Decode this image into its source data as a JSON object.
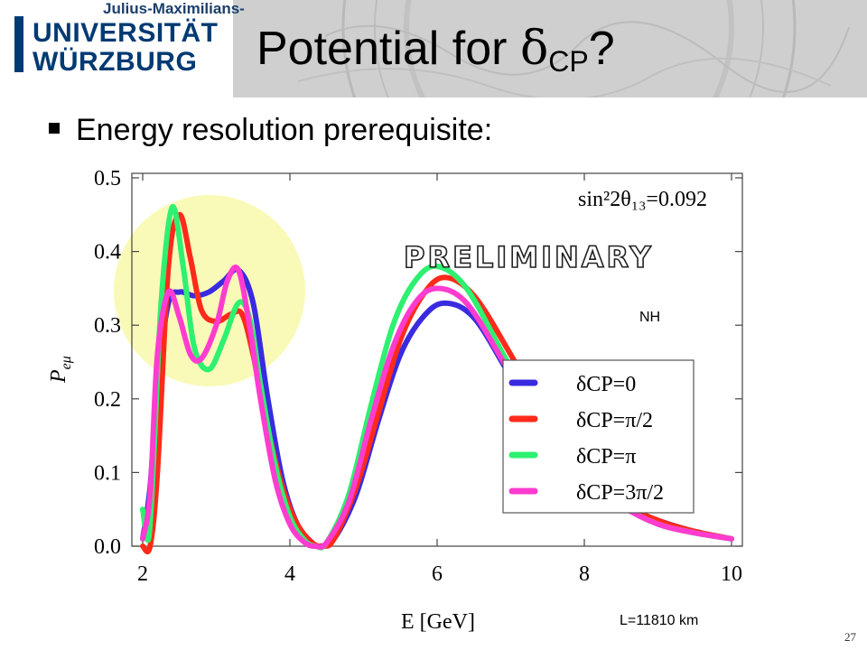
{
  "header": {
    "logo_subtitle": "Julius-Maximilians-",
    "logo_line1": "UNIVERSITÄT",
    "logo_line2": "WÜRZBURG"
  },
  "slide": {
    "title_text": "Potential for ",
    "title_symbol": "δ",
    "title_subscript": "CP",
    "title_suffix": "?",
    "bullet": "Energy resolution prerequisite:",
    "page_number": "27"
  },
  "chart_data": {
    "type": "line",
    "xlabel": "E [GeV]",
    "ylabel": "P",
    "ylabel_sub": "eμ",
    "xlim": [
      2,
      10.3
    ],
    "ylim": [
      0,
      0.5
    ],
    "x_ticks": [
      "2",
      "4",
      "6",
      "8",
      "10"
    ],
    "y_ticks": [
      "0.0",
      "0.1",
      "0.2",
      "0.3",
      "0.4",
      "0.5"
    ],
    "grid": false,
    "legend_position": "bottom-right",
    "annotations": {
      "theta": "sin²2θ₁₃=0.092",
      "watermark": "PRELIMINARY",
      "hierarchy": "NH",
      "baseline": "L=11810 km"
    },
    "series": [
      {
        "name": "δCP=0",
        "color": "#3a2be0",
        "x": [
          2.0,
          2.1,
          2.2,
          2.35,
          2.5,
          2.7,
          2.9,
          3.1,
          3.3,
          3.5,
          3.7,
          3.9,
          4.1,
          4.3,
          4.4,
          4.6,
          4.9,
          5.2,
          5.5,
          5.8,
          6.1,
          6.5,
          7.0,
          7.5,
          8.0,
          8.5,
          9.0,
          9.5,
          10.0
        ],
        "y": [
          0.01,
          0.08,
          0.22,
          0.33,
          0.345,
          0.34,
          0.345,
          0.36,
          0.375,
          0.33,
          0.2,
          0.09,
          0.03,
          0.005,
          0.0,
          0.01,
          0.07,
          0.17,
          0.26,
          0.31,
          0.33,
          0.31,
          0.23,
          0.15,
          0.09,
          0.055,
          0.035,
          0.02,
          0.01
        ]
      },
      {
        "name": "δCP=π/2",
        "color": "#ff2a1a",
        "x": [
          2.0,
          2.1,
          2.2,
          2.35,
          2.5,
          2.65,
          2.8,
          3.0,
          3.2,
          3.35,
          3.5,
          3.7,
          3.9,
          4.1,
          4.3,
          4.45,
          4.6,
          4.9,
          5.2,
          5.5,
          5.8,
          6.1,
          6.5,
          7.0,
          7.5,
          8.0,
          8.5,
          9.0,
          9.5,
          10.0
        ],
        "y": [
          0.0,
          0.0,
          0.1,
          0.38,
          0.45,
          0.39,
          0.32,
          0.305,
          0.315,
          0.315,
          0.26,
          0.16,
          0.08,
          0.03,
          0.005,
          0.0,
          0.01,
          0.08,
          0.18,
          0.28,
          0.34,
          0.365,
          0.34,
          0.26,
          0.17,
          0.11,
          0.06,
          0.035,
          0.02,
          0.01
        ]
      },
      {
        "name": "δCP=π",
        "color": "#2ef071",
        "x": [
          2.0,
          2.08,
          2.15,
          2.25,
          2.4,
          2.55,
          2.7,
          2.9,
          3.1,
          3.3,
          3.45,
          3.6,
          3.8,
          4.0,
          4.2,
          4.35,
          4.5,
          4.8,
          5.1,
          5.4,
          5.7,
          6.0,
          6.4,
          6.9,
          7.4,
          7.9,
          8.5,
          9.0,
          9.5,
          10.0
        ],
        "y": [
          0.05,
          0.01,
          0.12,
          0.33,
          0.46,
          0.38,
          0.27,
          0.24,
          0.28,
          0.33,
          0.31,
          0.22,
          0.11,
          0.04,
          0.008,
          0.0,
          0.005,
          0.07,
          0.19,
          0.3,
          0.36,
          0.38,
          0.35,
          0.26,
          0.17,
          0.1,
          0.055,
          0.03,
          0.018,
          0.01
        ]
      },
      {
        "name": "δCP=3π/2",
        "color": "#ff3ccf",
        "x": [
          2.0,
          2.1,
          2.2,
          2.35,
          2.5,
          2.65,
          2.8,
          3.0,
          3.15,
          3.3,
          3.45,
          3.6,
          3.8,
          4.0,
          4.2,
          4.35,
          4.5,
          4.8,
          5.1,
          5.4,
          5.7,
          6.0,
          6.4,
          6.9,
          7.4,
          7.9,
          8.5,
          9.0,
          9.5,
          10.0
        ],
        "y": [
          0.01,
          0.07,
          0.26,
          0.345,
          0.31,
          0.26,
          0.255,
          0.3,
          0.36,
          0.375,
          0.3,
          0.2,
          0.09,
          0.03,
          0.005,
          0.0,
          0.005,
          0.06,
          0.17,
          0.27,
          0.33,
          0.35,
          0.33,
          0.25,
          0.16,
          0.1,
          0.055,
          0.03,
          0.018,
          0.01
        ]
      }
    ]
  }
}
